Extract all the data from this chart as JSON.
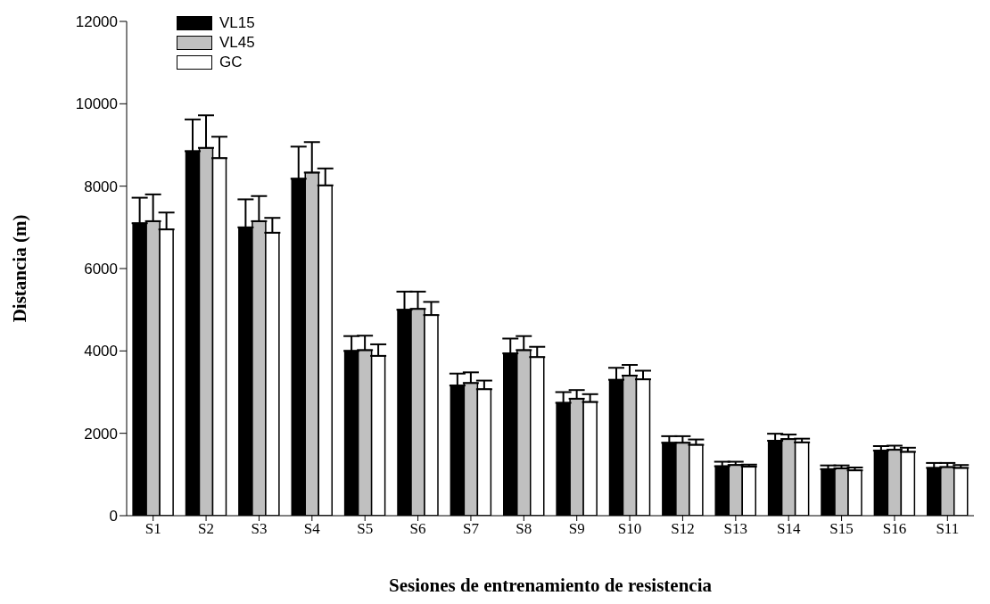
{
  "chart_data": {
    "type": "bar",
    "xlabel": "Sesiones de entrenamiento de resistencia",
    "ylabel": "Distancia (m)",
    "categories": [
      "S1",
      "S2",
      "S3",
      "S4",
      "S5",
      "S6",
      "S7",
      "S8",
      "S9",
      "S10",
      "S12",
      "S13",
      "S14",
      "S15",
      "S16",
      "S11"
    ],
    "series": [
      {
        "name": "VL15",
        "color": "#000000",
        "values": [
          7100,
          8850,
          7000,
          8180,
          4000,
          5000,
          3160,
          3940,
          2740,
          3300,
          1770,
          1200,
          1820,
          1130,
          1580,
          1160
        ],
        "errors": [
          [
            7100,
            7720
          ],
          [
            8850,
            9620
          ],
          [
            7000,
            7680
          ],
          [
            8180,
            8960
          ],
          [
            4000,
            4360
          ],
          [
            5000,
            5440
          ],
          [
            3160,
            3450
          ],
          [
            3940,
            4300
          ],
          [
            2740,
            3000
          ],
          [
            3300,
            3590
          ],
          [
            1770,
            1930
          ],
          [
            1200,
            1310
          ],
          [
            1820,
            1990
          ],
          [
            1130,
            1220
          ],
          [
            1580,
            1690
          ],
          [
            1160,
            1280
          ]
        ]
      },
      {
        "name": "VL45",
        "color": "#c0c0c0",
        "values": [
          7150,
          8930,
          7150,
          8330,
          4020,
          5020,
          3220,
          4020,
          2840,
          3400,
          1770,
          1230,
          1860,
          1150,
          1600,
          1180
        ],
        "errors": [
          [
            7150,
            7800
          ],
          [
            8930,
            9720
          ],
          [
            7150,
            7760
          ],
          [
            8330,
            9070
          ],
          [
            4020,
            4370
          ],
          [
            5020,
            5440
          ],
          [
            3220,
            3480
          ],
          [
            4020,
            4360
          ],
          [
            2840,
            3050
          ],
          [
            3400,
            3660
          ],
          [
            1770,
            1930
          ],
          [
            1230,
            1310
          ],
          [
            1860,
            1970
          ],
          [
            1150,
            1220
          ],
          [
            1600,
            1700
          ],
          [
            1180,
            1280
          ]
        ]
      },
      {
        "name": "GC",
        "color": "#ffffff",
        "values": [
          6950,
          8680,
          6870,
          8020,
          3880,
          4870,
          3070,
          3850,
          2760,
          3310,
          1720,
          1190,
          1780,
          1100,
          1550,
          1160
        ],
        "errors": [
          [
            6950,
            7360
          ],
          [
            8680,
            9200
          ],
          [
            6870,
            7230
          ],
          [
            8020,
            8430
          ],
          [
            3880,
            4160
          ],
          [
            4870,
            5190
          ],
          [
            3070,
            3280
          ],
          [
            3850,
            4100
          ],
          [
            2760,
            2950
          ],
          [
            3310,
            3520
          ],
          [
            1720,
            1850
          ],
          [
            1190,
            1240
          ],
          [
            1780,
            1870
          ],
          [
            1100,
            1170
          ],
          [
            1550,
            1650
          ],
          [
            1160,
            1230
          ]
        ]
      }
    ],
    "ylim": [
      0,
      12000
    ],
    "yticks": [
      0,
      2000,
      4000,
      6000,
      8000,
      10000,
      12000
    ],
    "grid": false,
    "legend": "top left"
  }
}
